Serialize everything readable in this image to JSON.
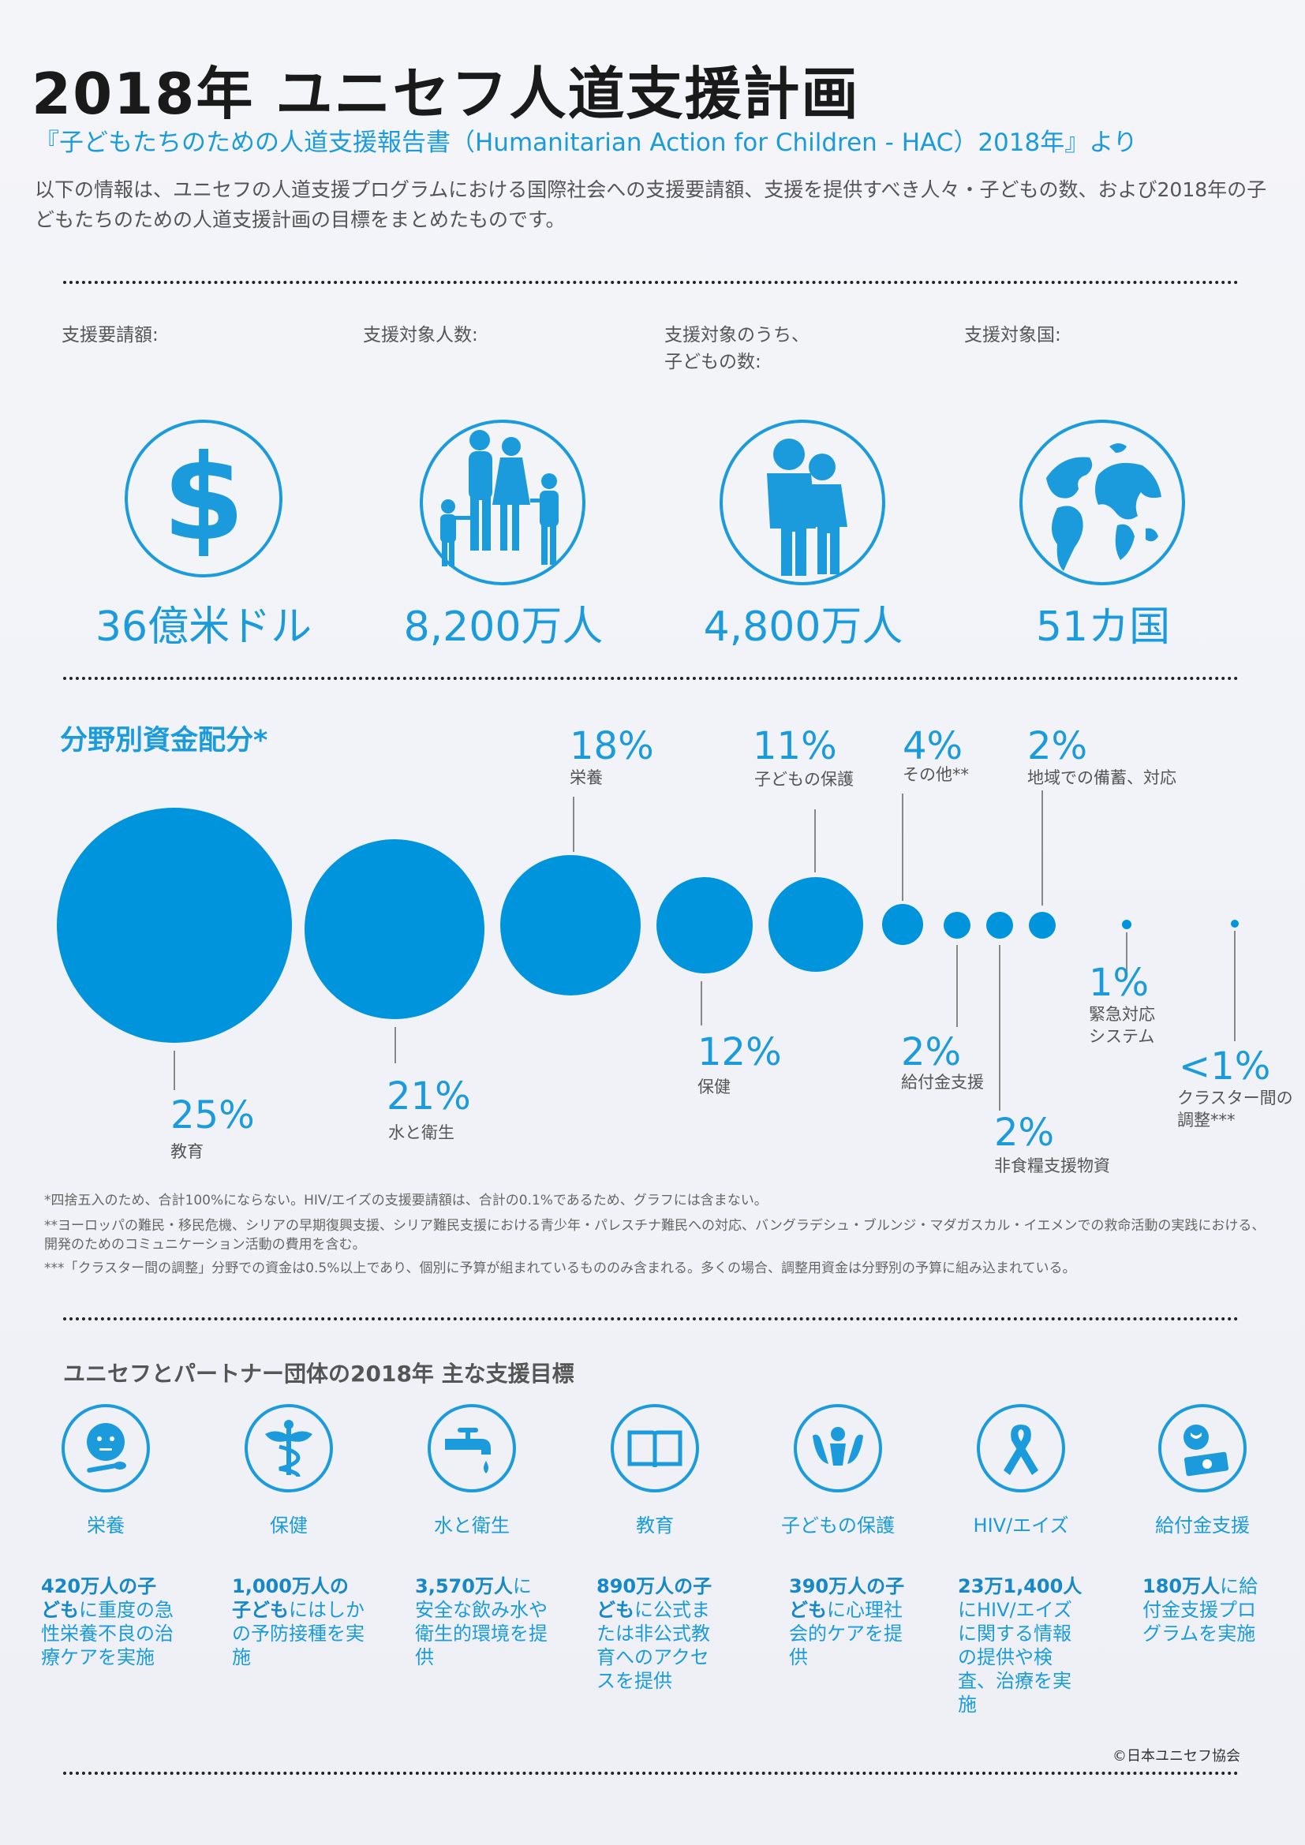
{
  "header": {
    "title": "2018年 ユニセフ人道支援計画",
    "subtitle": "『子どもたちのための人道支援報告書（Humanitarian Action for Children - HAC）2018年』より",
    "intro": "以下の情報は、ユニセフの人道支援プログラムにおける国際社会への支援要請額、支援を提供すべき人々・子どもの数、および2018年の子どもたちのための人道支援計画の目標をまとめたものです。"
  },
  "stats": [
    {
      "label": "支援要請額:",
      "value": "36億米ドル",
      "icon": "dollar-icon"
    },
    {
      "label": "支援対象人数:",
      "value": "8,200万人",
      "icon": "family-icon"
    },
    {
      "label": "支援対象のうち、",
      "label2": "子どもの数:",
      "value": "4,800万人",
      "icon": "children-icon"
    },
    {
      "label": "支援対象国:",
      "value": "51カ国",
      "icon": "globe-icon"
    }
  ],
  "funding": {
    "title": "分野別資金配分*",
    "items": [
      {
        "pct": "25%",
        "label": "教育"
      },
      {
        "pct": "21%",
        "label": "水と衛生"
      },
      {
        "pct": "18%",
        "label": "栄養"
      },
      {
        "pct": "12%",
        "label": "保健"
      },
      {
        "pct": "11%",
        "label": "子どもの保護"
      },
      {
        "pct": "4%",
        "label": "その他**"
      },
      {
        "pct": "2%",
        "label": "給付金支援"
      },
      {
        "pct": "2%",
        "label": "非食糧支援物資"
      },
      {
        "pct": "2%",
        "label": "地域での備蓄、対応"
      },
      {
        "pct": "1%",
        "label": "緊急対応",
        "label2": "システム"
      },
      {
        "pct": "<1%",
        "label": "クラスター間の",
        "label2": "調整***"
      }
    ],
    "notes": [
      "*四捨五入のため、合計100%にならない。HIV/エイズの支援要請額は、合計の0.1%であるため、グラフには含まない。",
      "**ヨーロッパの難民・移民危機、シリアの早期復興支援、シリア難民支援における青少年・パレスチナ難民への対応、バングラデシュ・ブルンジ・マダガスカル・イエメンでの救命活動の実践における、開発のためのコミュニケーション活動の費用を含む。",
      "***「クラスター間の調整」分野での資金は0.5%以上であり、個別に予算が組まれているもののみ含まれる。多くの場合、調整用資金は分野別の予算に組み込まれている。"
    ]
  },
  "goals": {
    "title": "ユニセフとパートナー団体の2018年 主な支援目標",
    "items": [
      {
        "name": "栄養",
        "icon": "child-spoon-icon",
        "bold": "420万人の子ども",
        "text": "に重度の急性栄養不良の治療ケアを実施"
      },
      {
        "name": "保健",
        "icon": "caduceus-icon",
        "bold": "1,000万人の子ども",
        "text": "にはしかの予防接種を実施"
      },
      {
        "name": "水と衛生",
        "icon": "water-tap-icon",
        "bold": "3,570万人",
        "text": "に安全な飲み水や衛生的環境を提供"
      },
      {
        "name": "教育",
        "icon": "book-icon",
        "bold": "890万人の子ども",
        "text": "に公式または非公式教育へのアクセスを提供"
      },
      {
        "name": "子どもの保護",
        "icon": "protect-hands-icon",
        "bold": "390万人の子ども",
        "text": "に心理社会的ケアを提供"
      },
      {
        "name": "HIV/エイズ",
        "icon": "ribbon-icon",
        "bold": "23万1,400人",
        "text": "にHIV/エイズに関する情報の提供や検査、治療を実施"
      },
      {
        "name": "給付金支援",
        "icon": "cash-icon",
        "bold": "180万人",
        "text": "に給付金支援プログラムを実施"
      }
    ]
  },
  "copyright": "©日本ユニセフ協会",
  "colors": {
    "accent": "#1b9bdc",
    "bubble": "#0094dc"
  }
}
